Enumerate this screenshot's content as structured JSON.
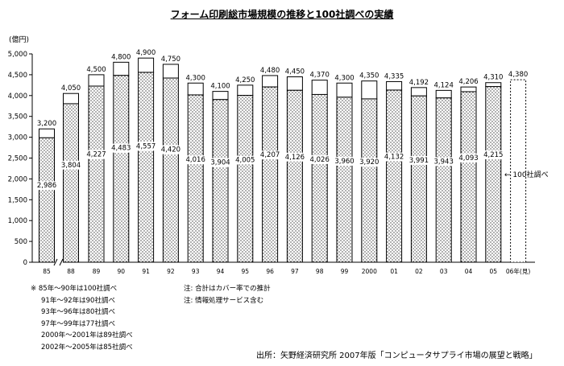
{
  "title": "フォーム印刷総市場規模の推移と100社調べの実績",
  "chart_data": {
    "type": "bar",
    "ylabel": "(億円)",
    "ylim": [
      0,
      5000
    ],
    "yticks": [
      "0",
      "500",
      "1,000",
      "1,500",
      "2,000",
      "2,500",
      "3,000",
      "3,500",
      "4,000",
      "4,500",
      "5,000"
    ],
    "categories": [
      "85",
      "88",
      "89",
      "90",
      "91",
      "92",
      "93",
      "94",
      "95",
      "96",
      "97",
      "98",
      "99",
      "2000",
      "01",
      "02",
      "03",
      "04",
      "05",
      "06年(見)"
    ],
    "totals": [
      3200,
      4050,
      4500,
      4800,
      4900,
      4750,
      4300,
      4100,
      4250,
      4480,
      4450,
      4370,
      4300,
      4350,
      4335,
      4192,
      4124,
      4206,
      4310,
      4380
    ],
    "total_labels": [
      "3,200",
      "4,050",
      "4,500",
      "4,800",
      "4,900",
      "4,750",
      "4,300",
      "4,100",
      "4,250",
      "4,480",
      "4,450",
      "4,370",
      "4,300",
      "4,350",
      "4,335",
      "4,192",
      "4,124",
      "4,206",
      "4,310",
      "4,380"
    ],
    "survey_values": [
      2986,
      3804,
      4227,
      4483,
      4557,
      4420,
      4016,
      3904,
      4005,
      4207,
      4126,
      4026,
      3960,
      3920,
      4132,
      3991,
      3943,
      4093,
      4215,
      null
    ],
    "survey_labels": [
      "2,986",
      "3,804",
      "4,227",
      "4,483",
      "4,557",
      "4,420",
      "4,016",
      "3,904",
      "4,005",
      "4,207",
      "4,126",
      "4,026",
      "3,960",
      "3,920",
      "4,132",
      "3,991",
      "3,943",
      "4,093",
      "4,215",
      ""
    ],
    "projected_category_index": 19,
    "axis_break_after_index": 0,
    "callout": "← 100社調べ",
    "grid": false,
    "colors": {
      "bar_fill": "#ffffff",
      "dot_pattern": "#000000",
      "axis": "#000000"
    }
  },
  "notes_left": [
    "※ 85年～90年は100社調べ",
    "91年～92年は90社調べ",
    "93年～96年は80社調べ",
    "97年～99年は77社調べ",
    "2000年～2001年は89社調べ",
    "2002年～2005年は85社調べ"
  ],
  "notes_right": [
    "注: 合計はカバー率での推計",
    "注: 情報処理サービス含む"
  ],
  "source": "出所：矢野経済研究所 2007年版「コンピュータサプライ市場の展望と戦略」"
}
